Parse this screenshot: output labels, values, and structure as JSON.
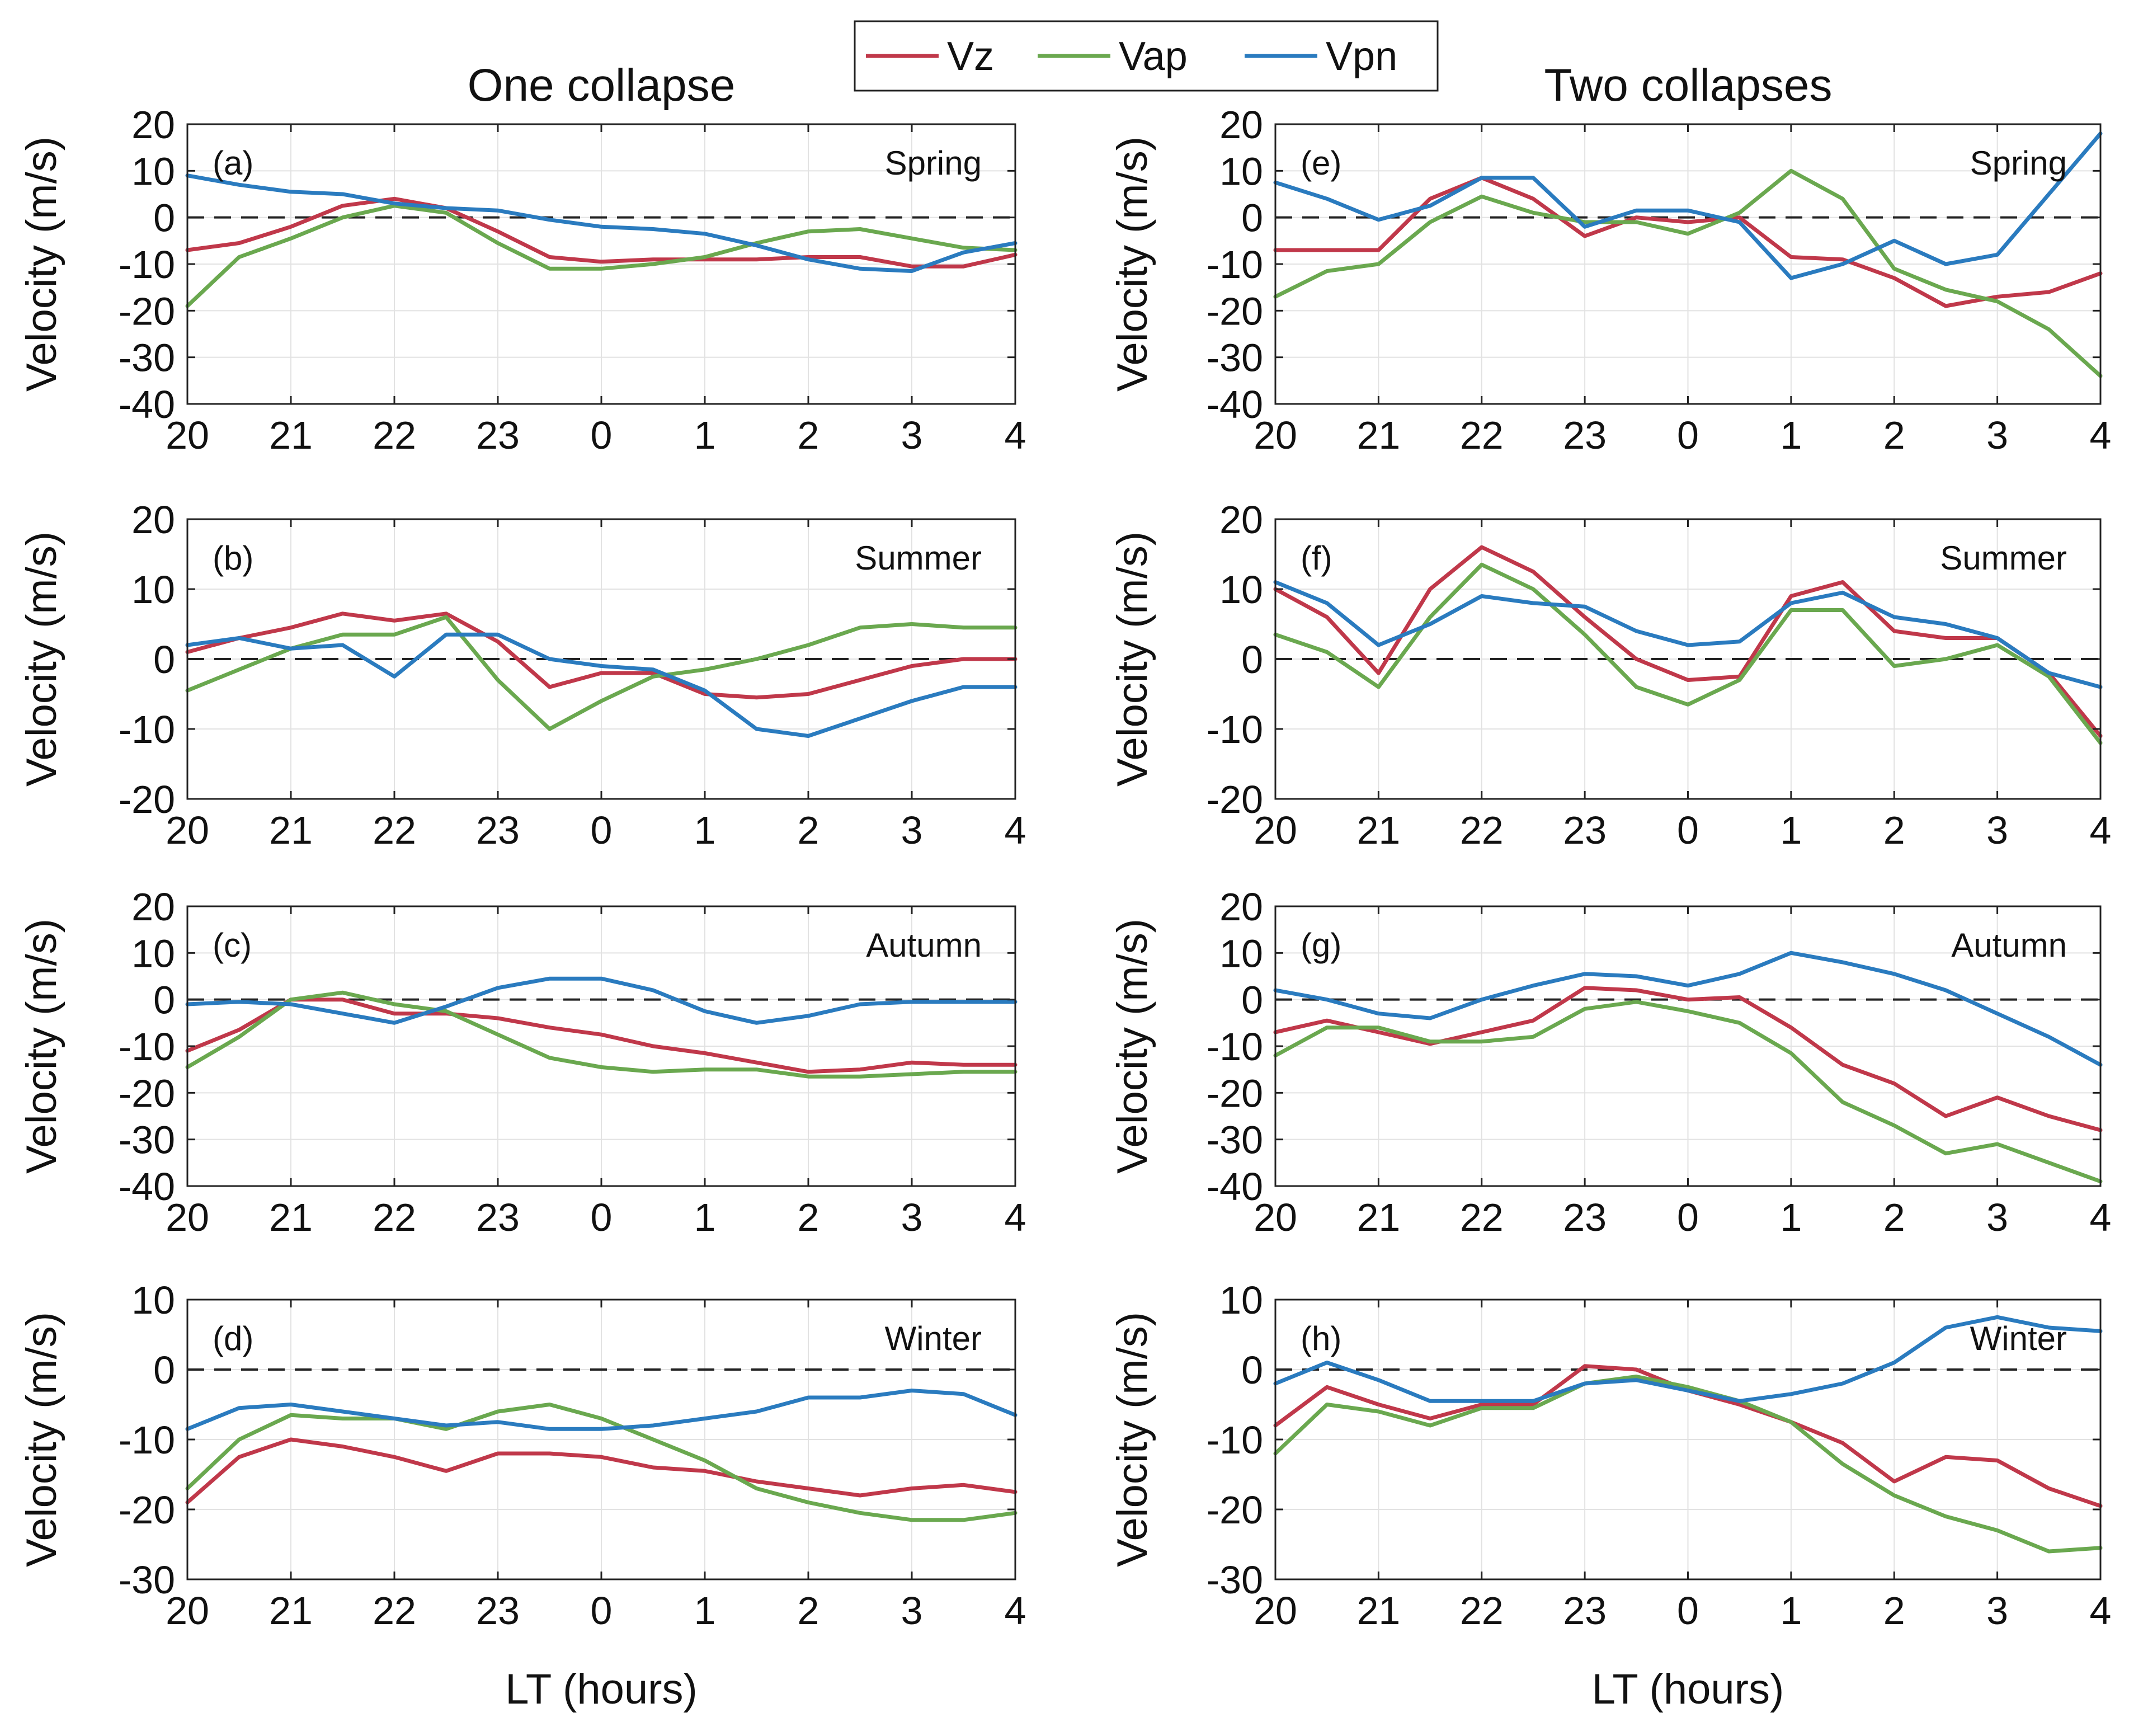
{
  "figure": {
    "column_titles": [
      "One collapse",
      "Two collapses"
    ],
    "xlabel": "LT (hours)",
    "ylabel": "Velocity (m/s)",
    "legend": [
      {
        "name": "Vz",
        "color": "#c0384a"
      },
      {
        "name": "Vap",
        "color": "#6aa84f"
      },
      {
        "name": "Vpn",
        "color": "#2a7bbf"
      }
    ]
  },
  "chart_data": [
    {
      "type": "line",
      "panel": "(a)",
      "season": "Spring",
      "column": "One collapse",
      "x": [
        0,
        0.5,
        1,
        1.5,
        2,
        2.5,
        3,
        3.5,
        4,
        4.5,
        5,
        5.5,
        6,
        6.5,
        7,
        7.5,
        8
      ],
      "x_tick_labels": [
        "20",
        "21",
        "22",
        "23",
        "0",
        "1",
        "2",
        "3",
        "4"
      ],
      "xlim": [
        0,
        8
      ],
      "ylim": [
        -40,
        20
      ],
      "yticks": [
        -40,
        -30,
        -20,
        -10,
        0,
        10,
        20
      ],
      "series": [
        {
          "name": "Vz",
          "values": [
            -7,
            -5.5,
            -2,
            2.5,
            4,
            2,
            -3,
            -8.5,
            -9.5,
            -9,
            -9,
            -9,
            -8.5,
            -8.5,
            -10.5,
            -10.5,
            -8
          ]
        },
        {
          "name": "Vap",
          "values": [
            -19,
            -8.5,
            -4.5,
            0,
            2.5,
            1,
            -5.5,
            -11,
            -11,
            -10,
            -8.5,
            -5.5,
            -3,
            -2.5,
            -4.5,
            -6.5,
            -7
          ]
        },
        {
          "name": "Vpn",
          "values": [
            9,
            7,
            5.5,
            5,
            3,
            2,
            1.5,
            -0.5,
            -2,
            -2.5,
            -3.5,
            -6,
            -9,
            -11,
            -11.5,
            -7.5,
            -5.5
          ]
        }
      ]
    },
    {
      "type": "line",
      "panel": "(b)",
      "season": "Summer",
      "column": "One collapse",
      "x": [
        0,
        0.5,
        1,
        1.5,
        2,
        2.5,
        3,
        3.5,
        4,
        4.5,
        5,
        5.5,
        6,
        6.5,
        7,
        7.5,
        8
      ],
      "x_tick_labels": [
        "20",
        "21",
        "22",
        "23",
        "0",
        "1",
        "2",
        "3",
        "4"
      ],
      "xlim": [
        0,
        8
      ],
      "ylim": [
        -20,
        20
      ],
      "yticks": [
        -20,
        -10,
        0,
        10,
        20
      ],
      "series": [
        {
          "name": "Vz",
          "values": [
            1,
            3,
            4.5,
            6.5,
            5.5,
            6.5,
            2.5,
            -4,
            -2,
            -2,
            -5,
            -5.5,
            -5,
            -3,
            -1,
            0,
            0
          ]
        },
        {
          "name": "Vap",
          "values": [
            -4.5,
            -1.5,
            1.5,
            3.5,
            3.5,
            6,
            -3,
            -10,
            -6,
            -2.5,
            -1.5,
            0,
            2,
            4.5,
            5,
            4.5,
            4.5
          ]
        },
        {
          "name": "Vpn",
          "values": [
            2,
            3,
            1.5,
            2,
            -2.5,
            3.5,
            3.5,
            0,
            -1,
            -1.5,
            -4.5,
            -10,
            -11,
            -8.5,
            -6,
            -4,
            -4
          ]
        }
      ]
    },
    {
      "type": "line",
      "panel": "(c)",
      "season": "Autumn",
      "column": "One collapse",
      "x": [
        0,
        0.5,
        1,
        1.5,
        2,
        2.5,
        3,
        3.5,
        4,
        4.5,
        5,
        5.5,
        6,
        6.5,
        7,
        7.5,
        8
      ],
      "x_tick_labels": [
        "20",
        "21",
        "22",
        "23",
        "0",
        "1",
        "2",
        "3",
        "4"
      ],
      "xlim": [
        0,
        8
      ],
      "ylim": [
        -40,
        20
      ],
      "yticks": [
        -40,
        -30,
        -20,
        -10,
        0,
        10,
        20
      ],
      "series": [
        {
          "name": "Vz",
          "values": [
            -11,
            -6.5,
            0,
            0,
            -3,
            -3,
            -4,
            -6,
            -7.5,
            -10,
            -11.5,
            -13.5,
            -15.5,
            -15,
            -13.5,
            -14,
            -14
          ]
        },
        {
          "name": "Vap",
          "values": [
            -14.5,
            -8,
            0,
            1.5,
            -1,
            -2.5,
            -7.5,
            -12.5,
            -14.5,
            -15.5,
            -15,
            -15,
            -16.5,
            -16.5,
            -16,
            -15.5,
            -15.5
          ]
        },
        {
          "name": "Vpn",
          "values": [
            -1,
            -0.5,
            -1,
            -3,
            -5,
            -1.5,
            2.5,
            4.5,
            4.5,
            2,
            -2.5,
            -5,
            -3.5,
            -1,
            -0.5,
            -0.5,
            -0.5
          ]
        }
      ]
    },
    {
      "type": "line",
      "panel": "(d)",
      "season": "Winter",
      "column": "One collapse",
      "x": [
        0,
        0.5,
        1,
        1.5,
        2,
        2.5,
        3,
        3.5,
        4,
        4.5,
        5,
        5.5,
        6,
        6.5,
        7,
        7.5,
        8
      ],
      "x_tick_labels": [
        "20",
        "21",
        "22",
        "23",
        "0",
        "1",
        "2",
        "3",
        "4"
      ],
      "xlim": [
        0,
        8
      ],
      "ylim": [
        -30,
        10
      ],
      "yticks": [
        -30,
        -20,
        -10,
        0,
        10
      ],
      "series": [
        {
          "name": "Vz",
          "values": [
            -19,
            -12.5,
            -10,
            -11,
            -12.5,
            -14.5,
            -12,
            -12,
            -12.5,
            -14,
            -14.5,
            -16,
            -17,
            -18,
            -17,
            -16.5,
            -17.5
          ]
        },
        {
          "name": "Vap",
          "values": [
            -17,
            -10,
            -6.5,
            -7,
            -7,
            -8.5,
            -6,
            -5,
            -7,
            -10,
            -13,
            -17,
            -19,
            -20.5,
            -21.5,
            -21.5,
            -20.5
          ]
        },
        {
          "name": "Vpn",
          "values": [
            -8.5,
            -5.5,
            -5,
            -6,
            -7,
            -8,
            -7.5,
            -8.5,
            -8.5,
            -8,
            -7,
            -6,
            -4,
            -4,
            -3,
            -3.5,
            -6.5
          ]
        }
      ]
    },
    {
      "type": "line",
      "panel": "(e)",
      "season": "Spring",
      "column": "Two collapses",
      "x": [
        0,
        0.5,
        1,
        1.5,
        2,
        2.5,
        3,
        3.5,
        4,
        4.5,
        5,
        5.5,
        6,
        6.5,
        7,
        7.5,
        8
      ],
      "x_tick_labels": [
        "20",
        "21",
        "22",
        "23",
        "0",
        "1",
        "2",
        "3",
        "4"
      ],
      "xlim": [
        0,
        8
      ],
      "ylim": [
        -40,
        20
      ],
      "yticks": [
        -40,
        -30,
        -20,
        -10,
        0,
        10,
        20
      ],
      "series": [
        {
          "name": "Vz",
          "values": [
            -7,
            -7,
            -7,
            4,
            8.5,
            4,
            -4,
            0,
            -1,
            0,
            -8.5,
            -9,
            -13,
            -19,
            -17,
            -16,
            -12
          ]
        },
        {
          "name": "Vap",
          "values": [
            -17,
            -11.5,
            -10,
            -1,
            4.5,
            1,
            -1,
            -1,
            -3.5,
            1,
            10,
            4,
            -11,
            -15.5,
            -18,
            -24,
            -34
          ]
        },
        {
          "name": "Vpn",
          "values": [
            7.5,
            4,
            -0.5,
            2.5,
            8.5,
            8.5,
            -2,
            1.5,
            1.5,
            -1,
            -13,
            -10,
            -5,
            -10,
            -8,
            5,
            18
          ]
        }
      ]
    },
    {
      "type": "line",
      "panel": "(f)",
      "season": "Summer",
      "column": "Two collapses",
      "x": [
        0,
        0.5,
        1,
        1.5,
        2,
        2.5,
        3,
        3.5,
        4,
        4.5,
        5,
        5.5,
        6,
        6.5,
        7,
        7.5,
        8
      ],
      "x_tick_labels": [
        "20",
        "21",
        "22",
        "23",
        "0",
        "1",
        "2",
        "3",
        "4"
      ],
      "xlim": [
        0,
        8
      ],
      "ylim": [
        -20,
        20
      ],
      "yticks": [
        -20,
        -10,
        0,
        10,
        20
      ],
      "series": [
        {
          "name": "Vz",
          "values": [
            10,
            6,
            -2,
            10,
            16,
            12.5,
            6,
            0,
            -3,
            -2.5,
            9,
            11,
            4,
            3,
            3,
            -2,
            -11
          ]
        },
        {
          "name": "Vap",
          "values": [
            3.5,
            1,
            -4,
            6,
            13.5,
            10,
            3.5,
            -4,
            -6.5,
            -3,
            7,
            7,
            -1,
            0,
            2,
            -2.5,
            -12
          ]
        },
        {
          "name": "Vpn",
          "values": [
            11,
            8,
            2,
            5,
            9,
            8,
            7.5,
            4,
            2,
            2.5,
            8,
            9.5,
            6,
            5,
            3,
            -2,
            -4
          ]
        }
      ]
    },
    {
      "type": "line",
      "panel": "(g)",
      "season": "Autumn",
      "column": "Two collapses",
      "x": [
        0,
        0.5,
        1,
        1.5,
        2,
        2.5,
        3,
        3.5,
        4,
        4.5,
        5,
        5.5,
        6,
        6.5,
        7,
        7.5,
        8
      ],
      "x_tick_labels": [
        "20",
        "21",
        "22",
        "23",
        "0",
        "1",
        "2",
        "3",
        "4"
      ],
      "xlim": [
        0,
        8
      ],
      "ylim": [
        -40,
        20
      ],
      "yticks": [
        -40,
        -30,
        -20,
        -10,
        0,
        10,
        20
      ],
      "series": [
        {
          "name": "Vz",
          "values": [
            -7,
            -4.5,
            -7,
            -9.5,
            -7,
            -4.5,
            2.5,
            2,
            0,
            0.5,
            -6,
            -14,
            -18,
            -25,
            -21,
            -25,
            -28
          ]
        },
        {
          "name": "Vap",
          "values": [
            -12,
            -6,
            -6,
            -9,
            -9,
            -8,
            -2,
            -0.5,
            -2.5,
            -5,
            -11.5,
            -22,
            -27,
            -33,
            -31,
            -35,
            -39
          ]
        },
        {
          "name": "Vpn",
          "values": [
            2,
            0,
            -3,
            -4,
            0,
            3,
            5.5,
            5,
            3,
            5.5,
            10,
            8,
            5.5,
            2,
            -3,
            -8,
            -14
          ]
        }
      ]
    },
    {
      "type": "line",
      "panel": "(h)",
      "season": "Winter",
      "column": "Two collapses",
      "x": [
        0,
        0.5,
        1,
        1.5,
        2,
        2.5,
        3,
        3.5,
        4,
        4.5,
        5,
        5.5,
        6,
        6.5,
        7,
        7.5,
        8
      ],
      "x_tick_labels": [
        "20",
        "21",
        "22",
        "23",
        "0",
        "1",
        "2",
        "3",
        "4"
      ],
      "xlim": [
        0,
        8
      ],
      "ylim": [
        -30,
        10
      ],
      "yticks": [
        -30,
        -20,
        -10,
        0,
        10
      ],
      "series": [
        {
          "name": "Vz",
          "values": [
            -8,
            -2.5,
            -5,
            -7,
            -5,
            -5,
            0.5,
            0,
            -3,
            -5,
            -7.5,
            -10.5,
            -16,
            -12.5,
            -13,
            -17,
            -19.5
          ]
        },
        {
          "name": "Vap",
          "values": [
            -12,
            -5,
            -6,
            -8,
            -5.5,
            -5.5,
            -2,
            -1,
            -2.5,
            -4.5,
            -7.5,
            -13.5,
            -18,
            -21,
            -23,
            -26,
            -25.5
          ]
        },
        {
          "name": "Vpn",
          "values": [
            -2,
            1,
            -1.5,
            -4.5,
            -4.5,
            -4.5,
            -2,
            -1.5,
            -3,
            -4.5,
            -3.5,
            -2,
            1,
            6,
            7.5,
            6,
            5.5
          ]
        }
      ]
    }
  ]
}
